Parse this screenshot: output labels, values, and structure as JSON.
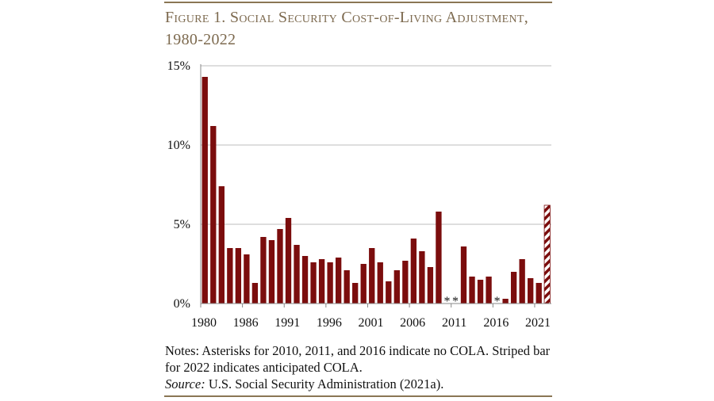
{
  "chart_data": {
    "type": "bar",
    "title": "Figure 1. Social Security Cost-of-Living Adjustment, 1980-2022",
    "xlabel": "",
    "ylabel": "",
    "ylim": [
      0,
      15
    ],
    "yticks": [
      "0%",
      "5%",
      "10%",
      "15%"
    ],
    "xtick_labels": [
      "1980",
      "1986",
      "1991",
      "1996",
      "2001",
      "2006",
      "2011",
      "2016",
      "2021"
    ],
    "grid": "horizontal",
    "bar_color": "#7b0d0d",
    "categories": [
      1981,
      1982,
      1983,
      1984,
      1985,
      1986,
      1987,
      1988,
      1989,
      1990,
      1991,
      1992,
      1993,
      1994,
      1995,
      1996,
      1997,
      1998,
      1999,
      2000,
      2001,
      2002,
      2003,
      2004,
      2005,
      2006,
      2007,
      2008,
      2009,
      2010,
      2011,
      2012,
      2013,
      2014,
      2015,
      2016,
      2017,
      2018,
      2019,
      2020,
      2021,
      2022
    ],
    "values": [
      14.3,
      11.2,
      7.4,
      3.5,
      3.5,
      3.1,
      1.3,
      4.2,
      4.0,
      4.7,
      5.4,
      3.7,
      3.0,
      2.6,
      2.8,
      2.6,
      2.9,
      2.1,
      1.3,
      2.5,
      3.5,
      2.6,
      1.4,
      2.1,
      2.7,
      4.1,
      3.3,
      2.3,
      5.8,
      0,
      0,
      3.6,
      1.7,
      1.5,
      1.7,
      0,
      0.3,
      2.0,
      2.8,
      1.6,
      1.3,
      6.2
    ],
    "asterisk_years": [
      2010,
      2011,
      2016
    ],
    "asterisk_label": "*",
    "striped_years": [
      2022
    ]
  },
  "notes": {
    "line1": "Notes: Asterisks for 2010, 2011, and 2016 indicate no COLA.  Striped bar for 2022 indicates anticipated COLA.",
    "source_label": "Source:",
    "source_text": " U.S. Social Security Administration (2021a)."
  }
}
